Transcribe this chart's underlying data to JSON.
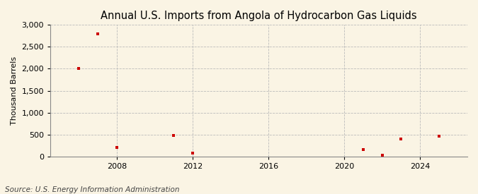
{
  "title": "Annual U.S. Imports from Angola of Hydrocarbon Gas Liquids",
  "ylabel": "Thousand Barrels",
  "source": "Source: U.S. Energy Information Administration",
  "background_color": "#faf4e4",
  "plot_background_color": "#faf4e4",
  "grid_color": "#bbbbbb",
  "marker_color": "#cc0000",
  "x_data": [
    2006,
    2007,
    2008,
    2011,
    2012,
    2021,
    2022,
    2023,
    2025
  ],
  "y_data": [
    2000,
    2800,
    200,
    480,
    80,
    150,
    30,
    390,
    470
  ],
  "xlim": [
    2004.5,
    2026.5
  ],
  "ylim": [
    0,
    3000
  ],
  "yticks": [
    0,
    500,
    1000,
    1500,
    2000,
    2500,
    3000
  ],
  "xticks": [
    2008,
    2012,
    2016,
    2020,
    2024
  ],
  "title_fontsize": 10.5,
  "label_fontsize": 8,
  "tick_fontsize": 8,
  "source_fontsize": 7.5
}
